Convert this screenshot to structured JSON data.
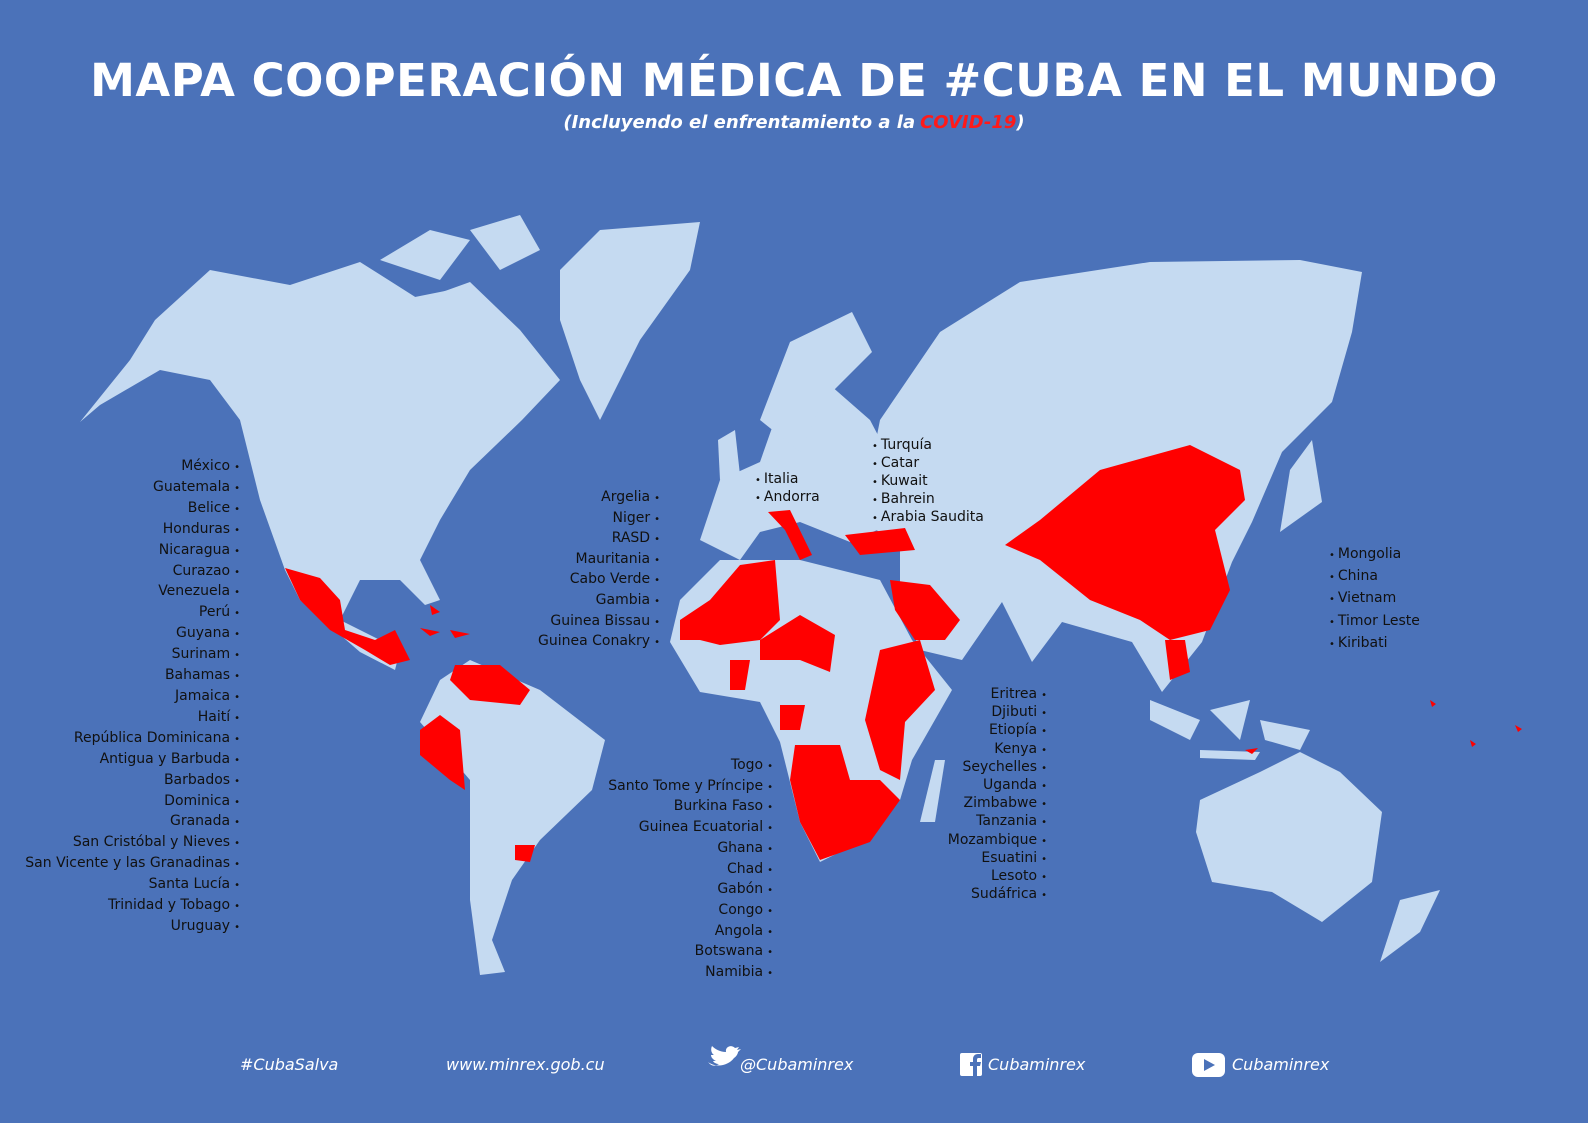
{
  "header": {
    "title": "MAPA COOPERACIÓN MÉDICA DE #CUBA EN EL MUNDO",
    "subtitle": {
      "before": "(Incluyendo el enfrentamiento a la",
      "highlight": "COVID-19",
      "after": ")"
    }
  },
  "lists": {
    "americas": [
      "México",
      "Guatemala",
      "Belice",
      "Honduras",
      "Nicaragua",
      "Curazao",
      "Venezuela",
      "Perú",
      "Guyana",
      "Surinam",
      "Bahamas",
      "Jamaica",
      "Haití",
      "República Dominicana",
      "Antigua y Barbuda",
      "Barbados",
      "Dominica",
      "Granada",
      "San Cristóbal y Nieves",
      "San Vicente y las Granadinas",
      "Santa Lucía",
      "Trinidad y Tobago",
      "Uruguay"
    ],
    "north_africa": [
      "Argelia",
      "Niger",
      "RASD",
      "Mauritania",
      "Cabo Verde",
      "Gambia",
      "Guinea Bissau",
      "Guinea Conakry"
    ],
    "europe": [
      "Italia",
      "Andorra"
    ],
    "middle_east": [
      "Turquía",
      "Catar",
      "Kuwait",
      "Bahrein",
      "Arabia Saudita"
    ],
    "asia": [
      "Mongolia",
      "China",
      "Vietnam",
      "Timor Leste",
      "Kiribati"
    ],
    "central_africa": [
      "Togo",
      "Santo Tome y Príncipe",
      "Burkina Faso",
      "Guinea Ecuatorial",
      "Ghana",
      "Chad",
      "Gabón",
      "Congo",
      "Angola",
      "Botswana",
      "Namibia"
    ],
    "east_africa": [
      "Eritrea",
      "Djibuti",
      "Etiopía",
      "Kenya",
      "Seychelles",
      "Uganda",
      "Zimbabwe",
      "Tanzania",
      "Mozambique",
      "Esuatini",
      "Lesoto",
      "Sudáfrica"
    ]
  },
  "footer": {
    "hashtag": "#CubaSalva",
    "website": "www.minrex.gob.cu",
    "twitter": "@Cubaminrex",
    "facebook": "Cubaminrex",
    "youtube": "Cubaminrex"
  }
}
